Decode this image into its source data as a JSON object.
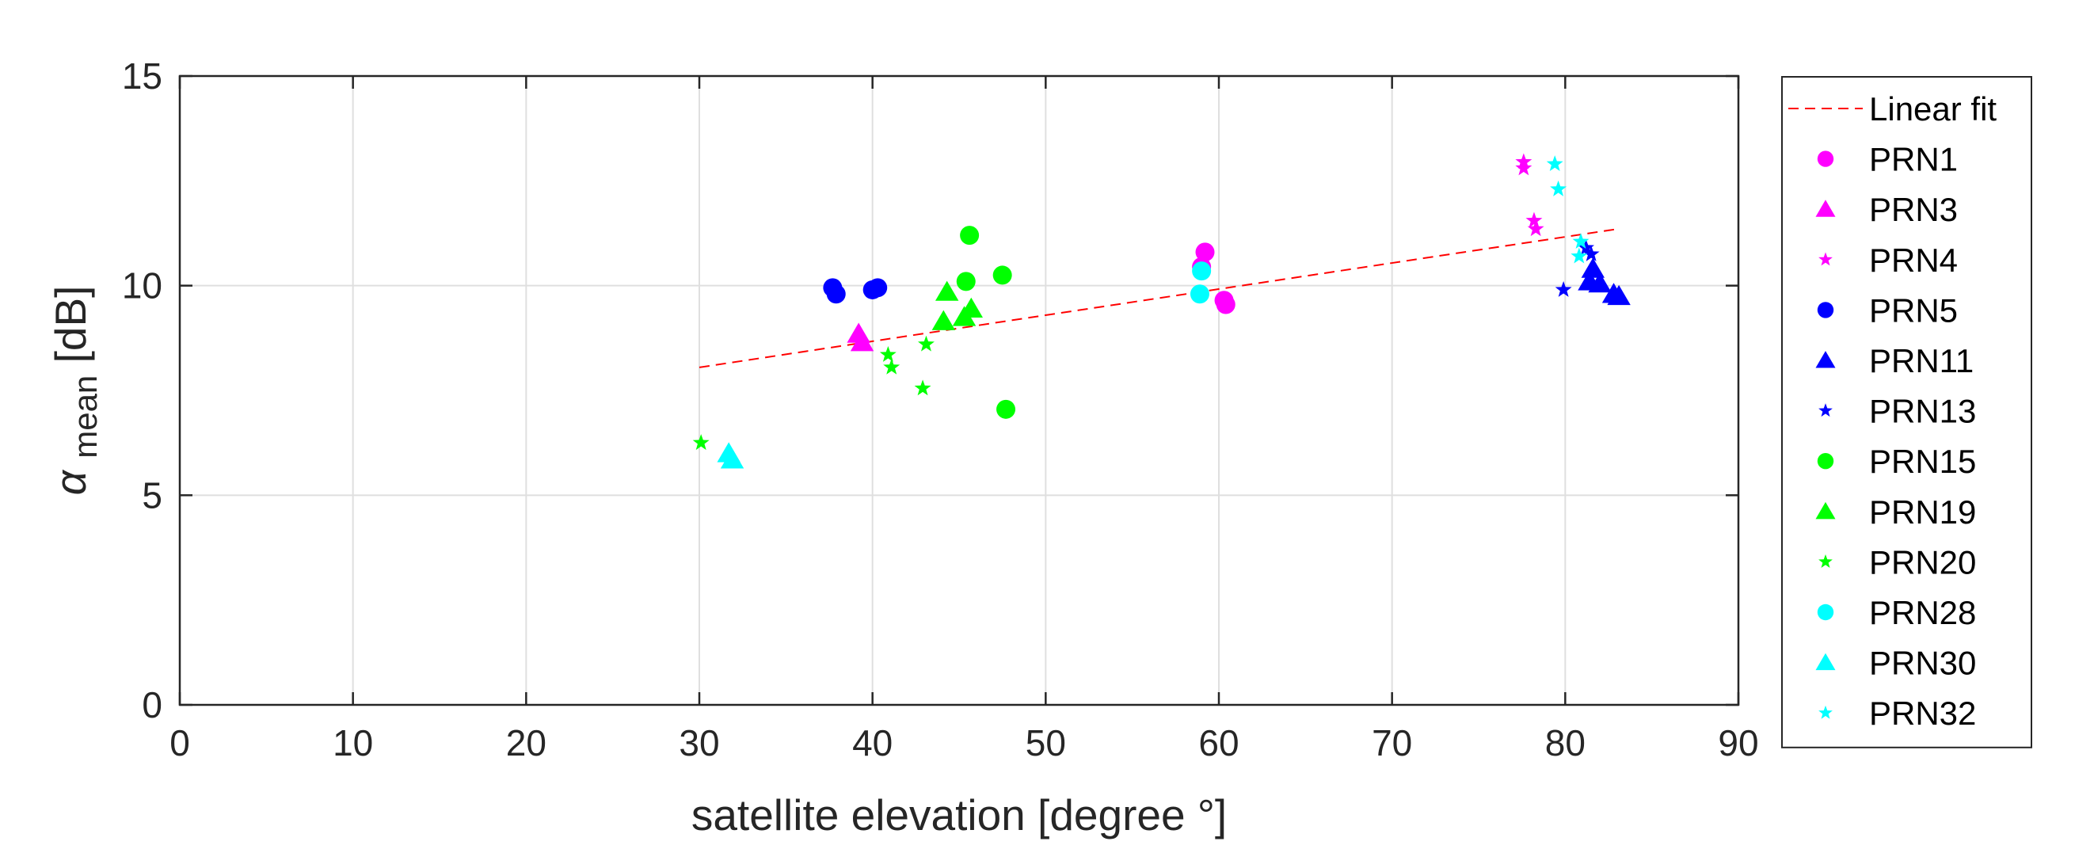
{
  "chart_data": {
    "type": "scatter",
    "title": "",
    "xlabel": "satellite elevation [degree °]",
    "ylabel_symbol": "α",
    "ylabel_subscript": "mean",
    "ylabel_unit": " [dB]",
    "xlim": [
      0,
      90
    ],
    "ylim": [
      0,
      15
    ],
    "xticks": [
      0,
      10,
      20,
      30,
      40,
      50,
      60,
      70,
      80,
      90
    ],
    "xtick_labels": [
      "0",
      "10",
      "20",
      "30",
      "40",
      "50",
      "60",
      "70",
      "80",
      "90"
    ],
    "yticks": [
      0,
      5,
      10,
      15
    ],
    "ytick_labels": [
      "0",
      "5",
      "10",
      "15"
    ],
    "grid": true,
    "legend_position": "outside-right",
    "fit": {
      "name": "Linear fit",
      "color": "#ff0000",
      "style": "dashed",
      "x": [
        30,
        83
      ],
      "y": [
        8.05,
        11.35
      ]
    },
    "series": [
      {
        "name": "PRN1",
        "marker": "circle",
        "color": "#ff00ff",
        "points": [
          [
            59.2,
            10.8
          ],
          [
            59.0,
            10.45
          ],
          [
            60.3,
            9.65
          ],
          [
            60.4,
            9.55
          ]
        ]
      },
      {
        "name": "PRN3",
        "marker": "triangle",
        "color": "#ff00ff",
        "points": [
          [
            39.2,
            8.85
          ],
          [
            39.4,
            8.65
          ]
        ]
      },
      {
        "name": "PRN4",
        "marker": "star",
        "color": "#ff00ff",
        "points": [
          [
            77.6,
            12.95
          ],
          [
            77.6,
            12.8
          ],
          [
            78.2,
            11.55
          ],
          [
            78.3,
            11.35
          ]
        ]
      },
      {
        "name": "PRN5",
        "marker": "circle",
        "color": "#0000ff",
        "points": [
          [
            37.7,
            9.95
          ],
          [
            37.9,
            9.8
          ],
          [
            40.0,
            9.9
          ],
          [
            40.3,
            9.95
          ]
        ]
      },
      {
        "name": "PRN11",
        "marker": "triangle",
        "color": "#0000ff",
        "points": [
          [
            81.6,
            10.4
          ],
          [
            81.4,
            10.1
          ],
          [
            82.0,
            10.05
          ],
          [
            82.8,
            9.8
          ],
          [
            83.1,
            9.75
          ]
        ]
      },
      {
        "name": "PRN13",
        "marker": "star",
        "color": "#0000ff",
        "points": [
          [
            79.9,
            9.9
          ],
          [
            81.2,
            10.9
          ],
          [
            81.5,
            10.75
          ]
        ]
      },
      {
        "name": "PRN15",
        "marker": "circle",
        "color": "#00ff00",
        "points": [
          [
            45.6,
            11.2
          ],
          [
            45.4,
            10.1
          ],
          [
            47.5,
            10.25
          ],
          [
            47.7,
            7.05
          ]
        ]
      },
      {
        "name": "PRN19",
        "marker": "triangle",
        "color": "#00ff00",
        "points": [
          [
            44.3,
            9.85
          ],
          [
            44.1,
            9.15
          ],
          [
            45.7,
            9.45
          ],
          [
            45.3,
            9.25
          ]
        ]
      },
      {
        "name": "PRN20",
        "marker": "star",
        "color": "#00ff00",
        "points": [
          [
            30.1,
            6.25
          ],
          [
            40.9,
            8.35
          ],
          [
            41.1,
            8.05
          ],
          [
            43.1,
            8.6
          ],
          [
            42.9,
            7.55
          ]
        ]
      },
      {
        "name": "PRN28",
        "marker": "circle",
        "color": "#00ffff",
        "points": [
          [
            59.0,
            10.35
          ],
          [
            58.9,
            9.8
          ]
        ]
      },
      {
        "name": "PRN30",
        "marker": "triangle",
        "color": "#00ffff",
        "points": [
          [
            31.7,
            6.0
          ],
          [
            31.9,
            5.85
          ]
        ]
      },
      {
        "name": "PRN32",
        "marker": "star",
        "color": "#00ffff",
        "points": [
          [
            79.4,
            12.9
          ],
          [
            79.6,
            12.3
          ],
          [
            80.9,
            11.05
          ],
          [
            80.8,
            10.7
          ]
        ]
      }
    ]
  }
}
